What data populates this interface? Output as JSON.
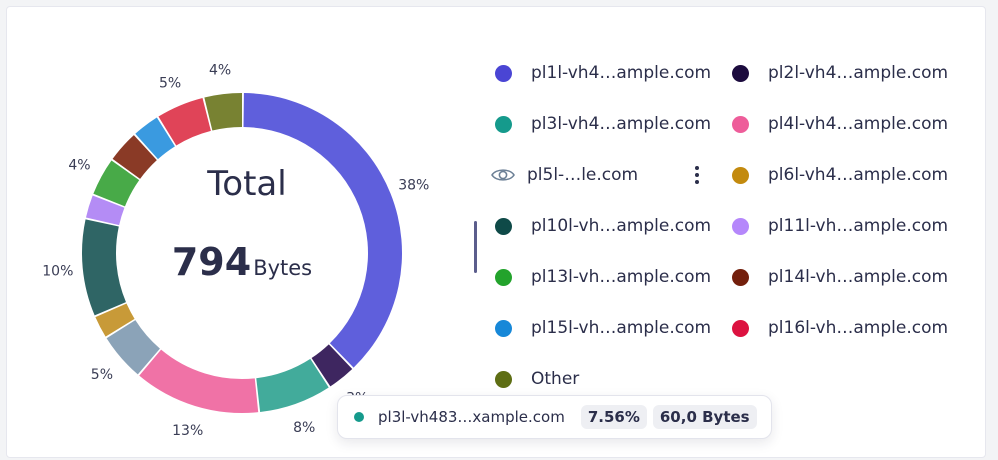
{
  "chart_data": {
    "type": "pie",
    "donut": true,
    "center": {
      "title": "Total",
      "value": "794",
      "unit": "Bytes"
    },
    "slices": [
      {
        "name": "pl1l-vh4…ample.com",
        "value": 38,
        "label": "38%",
        "color": "#5f5fdc"
      },
      {
        "name": "pl2l-vh4…ample.com",
        "value": 3,
        "label": "3%",
        "color": "#3e2660"
      },
      {
        "name": "pl3l-vh4…ample.com",
        "value": 7.56,
        "label": "8%",
        "color": "#42ab9b"
      },
      {
        "name": "pl4l-vh4…ample.com",
        "value": 13,
        "label": "13%",
        "color": "#f072a6"
      },
      {
        "name": "pl5l-…le.com",
        "value": 5,
        "label": "5%",
        "color": "#8ba3b8"
      },
      {
        "name": "pl6l-vh4…ample.com",
        "value": 2.4,
        "label": "",
        "color": "#c89a38"
      },
      {
        "name": "pl10l-vh…ample.com",
        "value": 10,
        "label": "10%",
        "color": "#2f6565"
      },
      {
        "name": "pl11l-vh…ample.com",
        "value": 2.5,
        "label": "",
        "color": "#b48cf5"
      },
      {
        "name": "pl13l-vh…ample.com",
        "value": 4,
        "label": "4%",
        "color": "#48aa48"
      },
      {
        "name": "pl14l-vh…ample.com",
        "value": 3.4,
        "label": "",
        "color": "#8a3a26"
      },
      {
        "name": "pl15l-vh…ample.com",
        "value": 2.9,
        "label": "",
        "color": "#3a9ae0"
      },
      {
        "name": "pl16l-vh…ample.com",
        "value": 5,
        "label": "5%",
        "color": "#e04458"
      },
      {
        "name": "Other",
        "value": 4,
        "label": "4%",
        "color": "#788232"
      }
    ]
  },
  "legend": [
    {
      "label": "pl1l-vh4…ample.com",
      "color": "#4a45d4",
      "icon": "dot"
    },
    {
      "label": "pl2l-vh4…ample.com",
      "color": "#1c0b3e",
      "icon": "dot"
    },
    {
      "label": "pl3l-vh4…ample.com",
      "color": "#159a8c",
      "icon": "dot"
    },
    {
      "label": "pl4l-vh4…ample.com",
      "color": "#ee5d9a",
      "icon": "dot"
    },
    {
      "label": "pl5l-…le.com",
      "color": "#6c8096",
      "icon": "eye-icon"
    },
    {
      "label": "pl6l-vh4…ample.com",
      "color": "#c38a0e",
      "icon": "dot"
    },
    {
      "label": "pl10l-vh…ample.com",
      "color": "#0f4a48",
      "icon": "dot"
    },
    {
      "label": "pl11l-vh…ample.com",
      "color": "#b587fb",
      "icon": "dot"
    },
    {
      "label": "pl13l-vh…ample.com",
      "color": "#23a32c",
      "icon": "dot"
    },
    {
      "label": "pl14l-vh…ample.com",
      "color": "#731f0c",
      "icon": "dot"
    },
    {
      "label": "pl15l-vh…ample.com",
      "color": "#1788d8",
      "icon": "dot"
    },
    {
      "label": "pl16l-vh…ample.com",
      "color": "#dc1240",
      "icon": "dot"
    },
    {
      "label": "Other",
      "color": "#5e6e14",
      "icon": "dot"
    }
  ],
  "tooltip": {
    "name": "pl3l-vh483…xample.com",
    "percent": "7.56%",
    "value": "60,0 Bytes",
    "color": "#159a8c"
  }
}
